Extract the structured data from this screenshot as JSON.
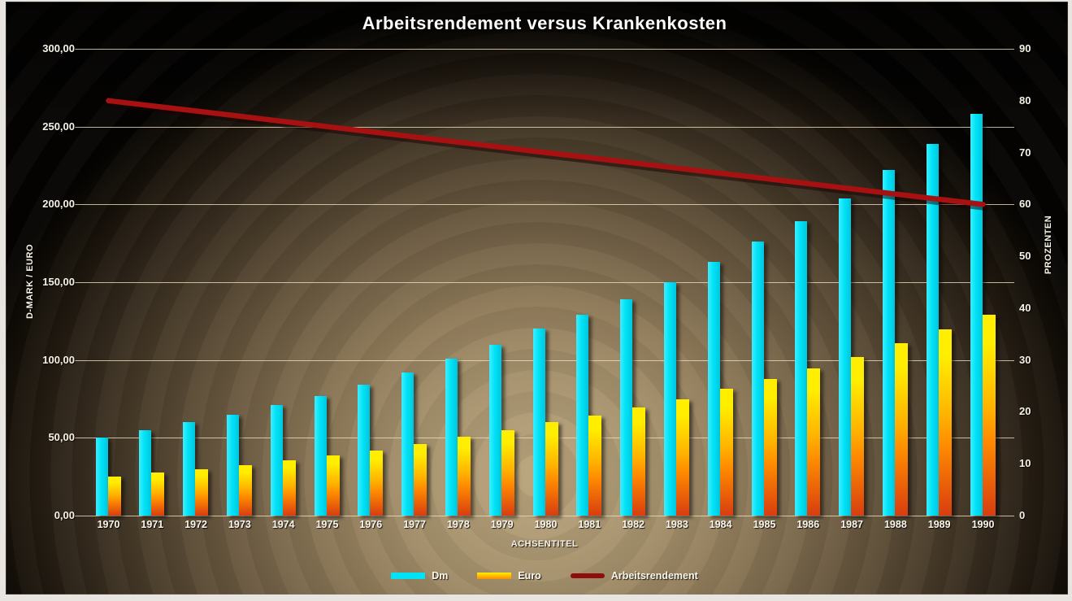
{
  "title": "Arbeitsrendement versus Krankenkosten",
  "palette": {
    "frame_border": "#e8e5e0",
    "background_center": "#b9a57d",
    "background_edge": "#040302",
    "gridline": "#ecdebc",
    "text": "#f7f2e6",
    "dm_bar": "#00e2f6",
    "euro_top": "#ffee00",
    "euro_mid": "#ff8c00",
    "euro_bottom": "#d83d10",
    "line": "#a81111",
    "line_legend": "#8e0d0d"
  },
  "chart_data": {
    "type": "bar",
    "subtype": "dual-axis column + line combo",
    "title": "Arbeitsrendement versus Krankenkosten",
    "categories": [
      "1970",
      "1971",
      "1972",
      "1973",
      "1974",
      "1975",
      "1976",
      "1977",
      "1978",
      "1979",
      "1980",
      "1981",
      "1982",
      "1983",
      "1984",
      "1985",
      "1986",
      "1987",
      "1988",
      "1989",
      "1990"
    ],
    "series": [
      {
        "name": "Dm",
        "type": "bar",
        "axis": "left",
        "values": [
          50,
          55,
          60,
          65,
          71,
          77,
          84,
          92,
          101,
          110,
          120,
          129,
          139,
          150,
          163,
          176,
          189,
          204,
          222,
          239,
          258
        ]
      },
      {
        "name": "Euro",
        "type": "bar",
        "axis": "left",
        "values": [
          25,
          27.5,
          30,
          32.5,
          35.5,
          38.5,
          42,
          46,
          50.5,
          55,
          60,
          64.5,
          69.5,
          75,
          81.5,
          88,
          94.5,
          102,
          111,
          119.5,
          129
        ]
      },
      {
        "name": "Arbeitsrendement",
        "type": "line",
        "axis": "right",
        "values": [
          80,
          79,
          78,
          77,
          76,
          75,
          74,
          73,
          72,
          71,
          70,
          69,
          68,
          67,
          66,
          65,
          64,
          63,
          62,
          61,
          60
        ]
      }
    ],
    "left_axis": {
      "title": "D-MARK / EURO",
      "min": 0,
      "max": 300,
      "tick_step": 50,
      "tick_labels": [
        "300,00",
        "250,00",
        "200,00",
        "150,00",
        "100,00",
        "50,00",
        "0,00"
      ]
    },
    "right_axis": {
      "title": "PROZENTEN",
      "min": 0,
      "max": 90,
      "tick_step": 10,
      "tick_labels": [
        "90",
        "80",
        "70",
        "60",
        "50",
        "40",
        "30",
        "20",
        "10",
        "0"
      ]
    },
    "x_axis": {
      "title": "ACHSENTITEL"
    },
    "legend_position": "bottom",
    "grid": true
  }
}
